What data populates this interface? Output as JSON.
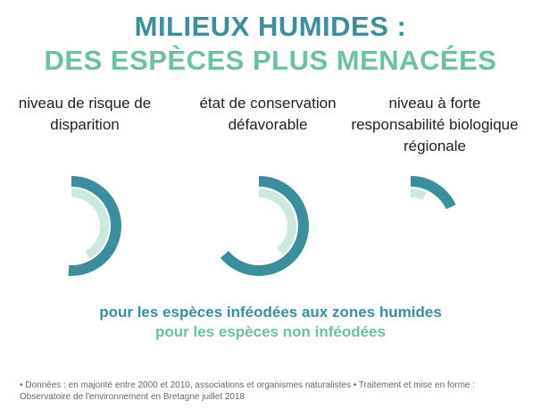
{
  "chart_data": {
    "type": "radial-bar",
    "title": "MILIEUX HUMIDES :",
    "subtitle": "DES ESPÈCES PLUS MENACÉES",
    "title_color": "#3b8f9c",
    "subtitle_color": "#6cc1a4",
    "categories": [
      "niveau de risque de disparition",
      "état de conservation défavorable",
      "niveau à forte responsabilité biologique régionale"
    ],
    "series": [
      {
        "name": "pour les espèces inféodées aux zones humides",
        "color": "#3b8f9c",
        "values": [
          51,
          64,
          18
        ]
      },
      {
        "name": "pour les espèces non inféodées",
        "color": "#cde9df",
        "values": [
          42,
          39,
          7
        ]
      }
    ],
    "ylim": [
      0,
      100
    ],
    "note": "• Données : en majorité entre 2000 et 2010, associations et organismes naturalistes • Traitement et mise en forme : Observatoire de l'environnement en Bretagne juillet 2018"
  }
}
